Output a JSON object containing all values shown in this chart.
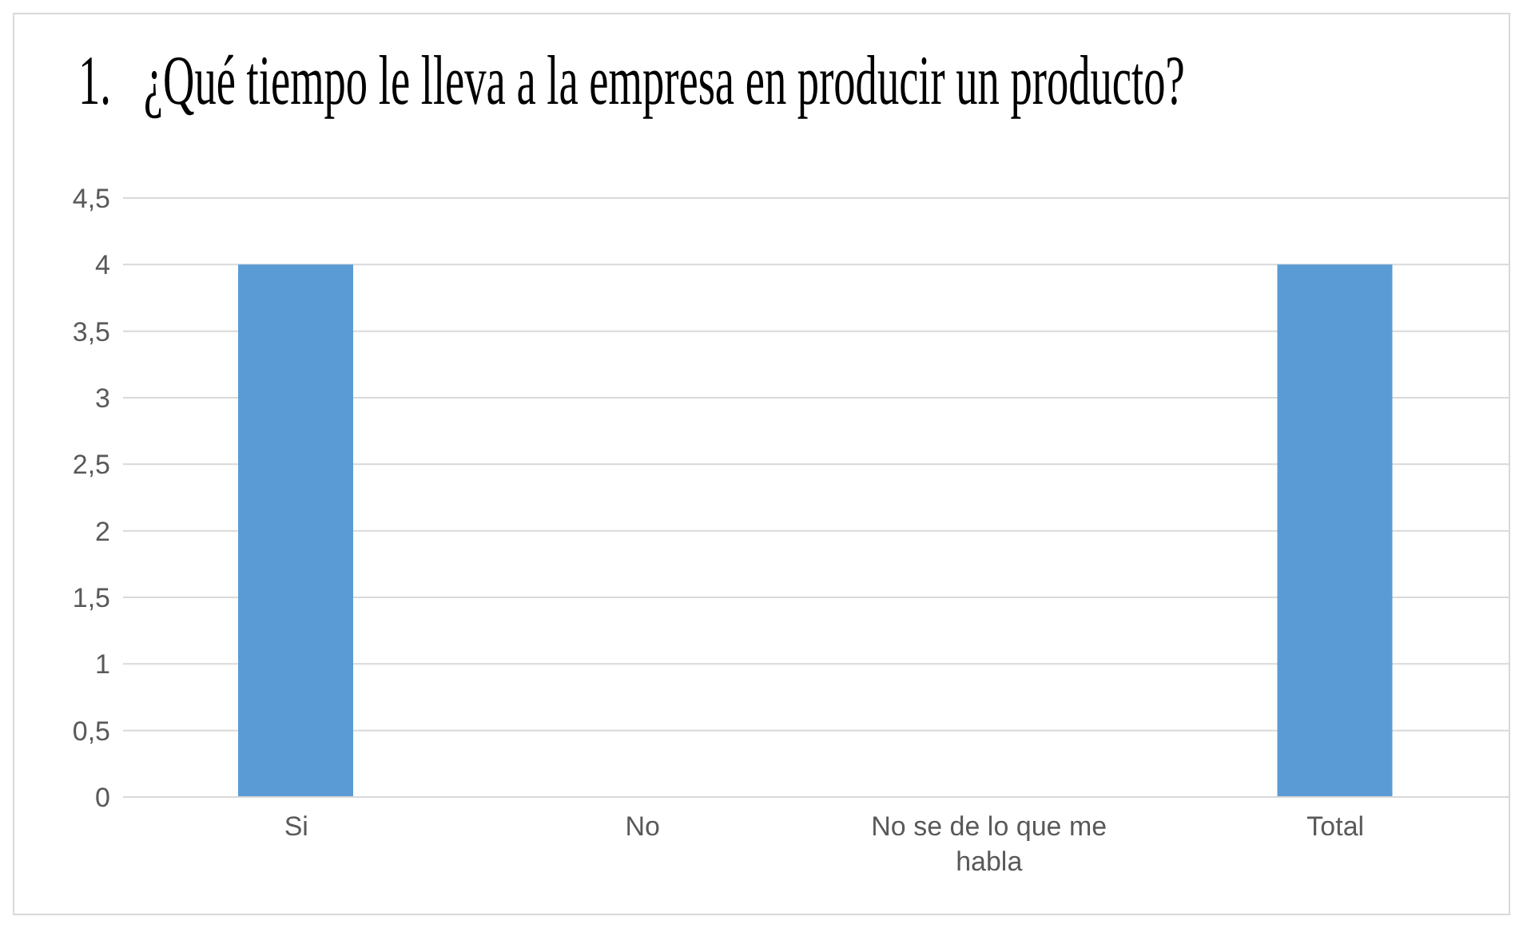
{
  "chart_data": {
    "type": "bar",
    "title": "1.   ¿Qué tiempo le lleva a la empresa en producir un producto?",
    "categories": [
      "Si",
      "No",
      "No se de lo que me habla",
      "Total"
    ],
    "values": [
      4,
      0,
      0,
      4
    ],
    "color": "#5b9bd5",
    "ylim": [
      0,
      4.5
    ],
    "yticks": [
      0,
      {
        "value": 0.5,
        "label": "0,5"
      },
      1,
      {
        "value": 1.5,
        "label": "1,5"
      },
      2,
      {
        "value": 2.5,
        "label": "2,5"
      },
      3,
      {
        "value": 3.5,
        "label": "3,5"
      },
      4,
      {
        "value": 4.5,
        "label": "4,5"
      }
    ],
    "grid": "y"
  }
}
